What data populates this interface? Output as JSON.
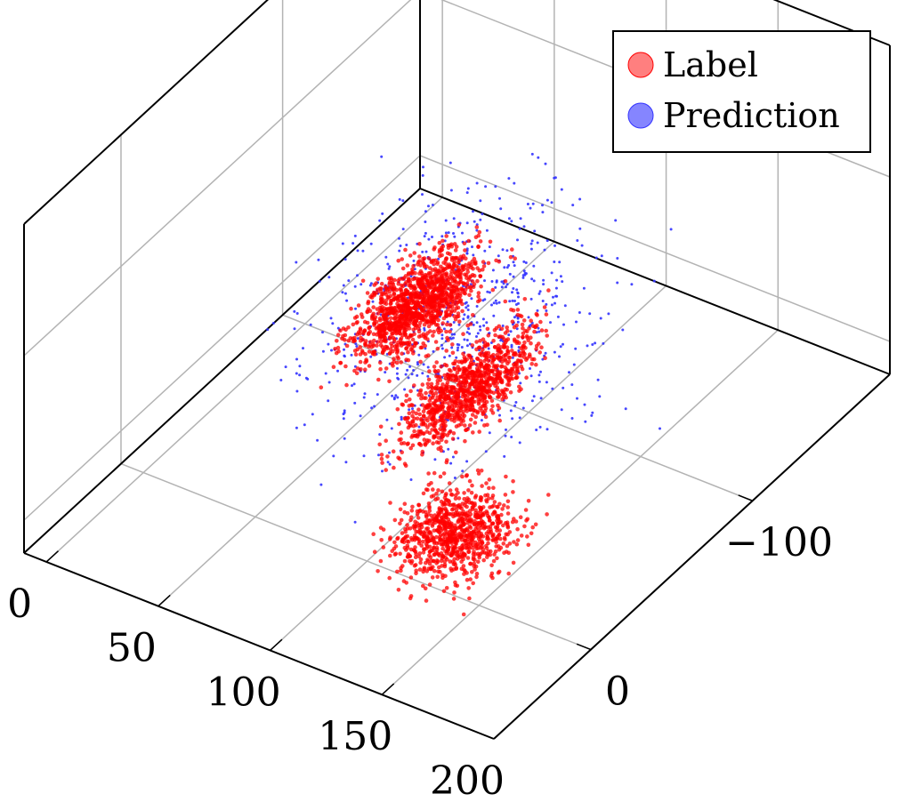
{
  "chart_data": {
    "type": "scatter",
    "title": "",
    "xlabel": "",
    "ylabel": "",
    "zlabel": "",
    "projection": "3d",
    "grid": true,
    "legend_position": "top-right",
    "x_axis": {
      "ticks": [
        0,
        50,
        100,
        150,
        200
      ],
      "tick_labels": [
        "0",
        "50",
        "100",
        "150",
        "200"
      ],
      "range": [
        -10,
        200
      ]
    },
    "y_axis": {
      "ticks": [
        0,
        -100
      ],
      "tick_labels": [
        "0",
        "−100"
      ],
      "range": [
        60,
        -185
      ]
    },
    "z_axis": {
      "ticks": [],
      "tick_labels": []
    },
    "series": [
      {
        "name": "Label",
        "color": "#ff0000",
        "marker_note": "dense point cloud shaped like a chair/seat",
        "clusters": [
          {
            "x_center": 125,
            "y_center": -20,
            "x_spread": 25,
            "y_spread": 30,
            "count": 900
          },
          {
            "x_center": 80,
            "y_center": -90,
            "x_spread": 15,
            "y_spread": 45,
            "count": 1000
          },
          {
            "x_center": 35,
            "y_center": -120,
            "x_spread": 18,
            "y_spread": 40,
            "count": 1300
          }
        ]
      },
      {
        "name": "Prediction",
        "color": "#3333ff",
        "marker_note": "sparse scattered points",
        "clusters": [
          {
            "x_center": 90,
            "y_center": -70,
            "x_spread": 60,
            "y_spread": 75,
            "count": 700
          }
        ]
      }
    ]
  }
}
